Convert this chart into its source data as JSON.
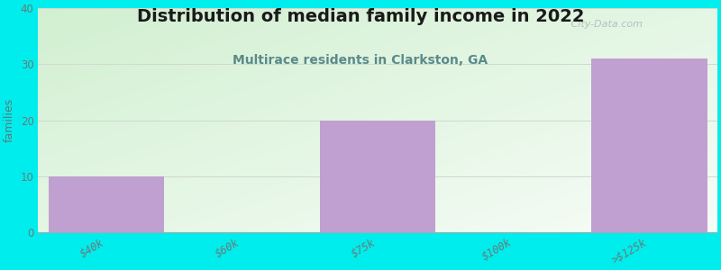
{
  "title": "Distribution of median family income in 2022",
  "subtitle": "Multirace residents in Clarkston, GA",
  "ylabel": "families",
  "categories": [
    "$40k",
    "$60k",
    "$75k",
    "$100k",
    ">$125k"
  ],
  "values": [
    10,
    0,
    20,
    0,
    31
  ],
  "bar_color": "#c0a0d0",
  "bar_edge_color": "#c0a0d0",
  "background_color": "#00eded",
  "plot_bg_color_tl": [
    0.82,
    0.94,
    0.82
  ],
  "plot_bg_color_br": [
    0.97,
    0.99,
    0.97
  ],
  "title_color": "#1a1a1a",
  "subtitle_color": "#5a8a8a",
  "ylabel_color": "#5a7a7a",
  "tick_color": "#6a7a7a",
  "ylim": [
    0,
    40
  ],
  "yticks": [
    0,
    10,
    20,
    30,
    40
  ],
  "grid_color": "#d0d8d0",
  "title_fontsize": 14,
  "subtitle_fontsize": 10,
  "ylabel_fontsize": 9,
  "tick_fontsize": 8.5,
  "watermark_text": " City-Data.com",
  "watermark_color": "#a8b8b8",
  "bar_width": 0.85
}
